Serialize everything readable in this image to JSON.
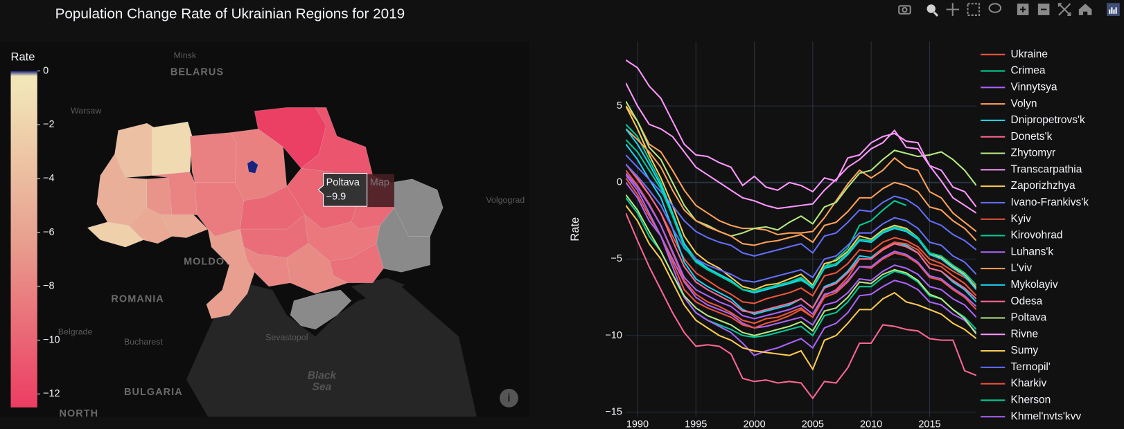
{
  "title": "Population Change Rate of Ukrainian Regions for 2019",
  "chart_data": [
    {
      "type": "choropleth",
      "values": [
        -3.5,
        -1.5,
        -5,
        -2.3,
        -5.5,
        -7,
        -5.3,
        -8,
        -8.3,
        -8.6,
        -8.2,
        0.5,
        -12.4,
        -11,
        -9.9,
        -9.6,
        null,
        null,
        -9.8,
        -9.4,
        -8.8,
        -9.3,
        -7.8,
        -7.6,
        -6.3,
        null
      ],
      "no_data_color": "#8a8a8a",
      "colorbar_title": "Rate",
      "clim": [
        -12.5,
        0
      ],
      "colorscale": [
        [
          0,
          "#ec3d63"
        ],
        [
          0.5,
          "#e8a08f"
        ],
        [
          0.96,
          "#f1e6b8"
        ],
        [
          0.985,
          "#f1e6b8"
        ],
        [
          1,
          "#1a237e"
        ]
      ],
      "cticks": [
        0,
        {
          "value": -2,
          "label": "−2"
        },
        {
          "value": -4,
          "label": "−4"
        },
        {
          "value": -6,
          "label": "−6"
        },
        {
          "value": -8,
          "label": "−8"
        },
        {
          "value": -10,
          "label": "−10"
        },
        {
          "value": -12,
          "label": "−12"
        }
      ],
      "place_labels": [
        "Minsk",
        "BELARUS",
        "Warsaw",
        "MOLDOVA",
        "ROMANIA",
        "Belgrade",
        "Bucharest",
        "Sevastopol",
        "Black",
        "Sea",
        "BULGARIA",
        "Volgograd",
        "NORTH"
      ],
      "tooltip": {
        "name": "Poltava",
        "value": -9.9,
        "label": "−9.9",
        "trace": "Map"
      }
    },
    {
      "type": "line",
      "y_label": "Rate",
      "x": [
        1989,
        1990,
        1991,
        1992,
        1993,
        1994,
        1995,
        1996,
        1997,
        1998,
        1999,
        2000,
        2001,
        2002,
        2003,
        2004,
        2005,
        2006,
        2007,
        2008,
        2009,
        2010,
        2011,
        2012,
        2013,
        2014,
        2015,
        2016,
        2017,
        2018,
        2019
      ],
      "xlim": [
        1989,
        2019
      ],
      "xticks": [
        1990,
        1995,
        2000,
        2005,
        2010,
        2015
      ],
      "ylim": [
        -15.3,
        9.2
      ],
      "yticks": [
        {
          "value": -15,
          "label": "−15"
        },
        {
          "value": -10,
          "label": "−10"
        },
        {
          "value": -5,
          "label": "−5"
        },
        0,
        5
      ],
      "grid": true,
      "series": [
        {
          "name": "Ukraine",
          "color": "#EF553B",
          "values": [
            1.2,
            0.2,
            -0.8,
            -2,
            -3.5,
            -5,
            -5.9,
            -6.4,
            -6.9,
            -7.3,
            -7.8,
            -7.9,
            -7.6,
            -7.4,
            -7.2,
            -6.9,
            -7.4,
            -6.1,
            -5.9,
            -5.3,
            -4.4,
            -4.5,
            -3.9,
            -3.6,
            -3.8,
            -4.2,
            -5,
            -5.3,
            -5.8,
            -6.2,
            -6.8
          ]
        },
        {
          "name": "Crimea",
          "color": "#00cc96",
          "values": [
            3.8,
            3,
            1.5,
            0,
            -2,
            -4,
            -5,
            -5.6,
            -6,
            -6.4,
            -7,
            -7.2,
            -7,
            -6.8,
            -6.6,
            -6.4,
            -6.8,
            -5.5,
            -5,
            -4.3,
            -2.8,
            -2.5,
            -1.8,
            -1.2,
            -1.5,
            null,
            null,
            null,
            null,
            null,
            null
          ]
        },
        {
          "name": "Vinnytsya",
          "color": "#ab63fa",
          "values": [
            0,
            -1,
            -2.5,
            -3.5,
            -5,
            -6.5,
            -7.5,
            -8,
            -8.3,
            -8.6,
            -9.2,
            -9.5,
            -9.4,
            -9.2,
            -9,
            -8.8,
            -9.3,
            -8,
            -7.8,
            -7.2,
            -6.3,
            -6.4,
            -5.8,
            -5.4,
            -5.6,
            -6,
            -6.8,
            -7,
            -7.6,
            -8,
            -8.8
          ]
        },
        {
          "name": "Volyn",
          "color": "#FFA15A",
          "values": [
            5,
            4,
            2.5,
            2,
            0.8,
            -0.5,
            -1.5,
            -2,
            -2.5,
            -2.8,
            -3,
            -3,
            -3.1,
            -3.4,
            -3.3,
            -3.3,
            -3.2,
            -2.3,
            -1.2,
            -0.1,
            0.8,
            0.3,
            0.8,
            1.6,
            1,
            0.8,
            -0.6,
            -1,
            -2,
            -2.6,
            -3.2
          ]
        },
        {
          "name": "Dnipropetrovs'k",
          "color": "#19d3f3",
          "values": [
            2.5,
            1.5,
            0.2,
            -1,
            -3,
            -5.2,
            -6.3,
            -6.8,
            -7.2,
            -7.6,
            -8.3,
            -8.6,
            -8.4,
            -8.2,
            -8,
            -7.6,
            -8.2,
            -6.8,
            -6.5,
            -5.8,
            -4.8,
            -4.9,
            -4.3,
            -3.9,
            -4.1,
            -4.6,
            -5.6,
            -5.8,
            -6.5,
            -7,
            -7.8
          ]
        },
        {
          "name": "Donets'k",
          "color": "#FF6692",
          "values": [
            -2,
            -3.8,
            -5.5,
            -7,
            -8.5,
            -9.8,
            -10.7,
            -10.6,
            -10.7,
            -11.2,
            -12.8,
            -13,
            -12.9,
            -13.1,
            -13,
            -13.1,
            -14.1,
            -13,
            -13.1,
            -12.1,
            -10.5,
            -10.5,
            -9.3,
            -9.4,
            -9.6,
            -9.7,
            -10.2,
            -10.3,
            -10.3,
            -12.3,
            -12.6
          ]
        },
        {
          "name": "Zhytomyr",
          "color": "#B6E880",
          "values": [
            5.3,
            4,
            2.3,
            1.5,
            0,
            -1.5,
            -2.5,
            -2.8,
            -3.2,
            -3.5,
            -3.3,
            -3,
            -2.9,
            -3.1,
            -2.6,
            -2.2,
            -2.7,
            -1.6,
            -1.3,
            -0.3,
            0.6,
            0.8,
            1.5,
            2.1,
            1.9,
            1.7,
            1.8,
            2,
            1.5,
            0.8,
            -0.2
          ]
        },
        {
          "name": "Transcarpathia",
          "color": "#FF97FF",
          "values": [
            8,
            7.5,
            6.3,
            5.5,
            4,
            2.5,
            1.8,
            1.7,
            1.3,
            1,
            -0.2,
            0.4,
            -0.3,
            -0.5,
            0,
            -0.2,
            -0.6,
            0.3,
            0.1,
            1.6,
            1.8,
            2.6,
            3,
            3.2,
            2.7,
            2.6,
            1.1,
            0.8,
            -0.3,
            -0.6,
            -1.6
          ]
        },
        {
          "name": "Zaporizhzhya",
          "color": "#FECB52",
          "values": [
            5,
            3.5,
            1.8,
            0.3,
            -1.5,
            -3.5,
            -4.6,
            -5.2,
            -5.6,
            -6.2,
            -6.8,
            -7,
            -6.7,
            -6.6,
            -6.3,
            -6,
            -6.7,
            -5.3,
            -5.1,
            -4.5,
            -3.5,
            -3.7,
            -3.1,
            -2.8,
            -3,
            -3.6,
            -4.6,
            -4.9,
            -5.5,
            -6,
            -6.9
          ]
        },
        {
          "name": "Ivano-Frankivs'k",
          "color": "#636efa",
          "values": [
            1.8,
            1,
            0.2,
            -0.6,
            -1.5,
            -2.5,
            -3.2,
            -3.6,
            -3.9,
            -4.1,
            -4.6,
            -4.8,
            -4.6,
            -4.4,
            -4.2,
            -4,
            -4.6,
            -3.5,
            -3.3,
            -2.6,
            -1.8,
            -1.9,
            -1.3,
            -0.9,
            -1.1,
            -1.6,
            -2.5,
            -2.8,
            -3.4,
            -3.8,
            -4.4
          ]
        },
        {
          "name": "Kyiv",
          "color": "#EF553B",
          "values": [
            0.3,
            -0.8,
            -2.2,
            -3.5,
            -5.2,
            -7,
            -7.8,
            -8.2,
            -8.5,
            -8.8,
            -9.3,
            -9.5,
            -9.2,
            -9,
            -8.7,
            -8.3,
            -8.8,
            -7.4,
            -7,
            -6.2,
            -5,
            -5,
            -4.3,
            -3.9,
            -4,
            -4.4,
            -5.3,
            -5.5,
            -6.1,
            -6.6,
            -7.4
          ]
        },
        {
          "name": "Kirovohrad",
          "color": "#00cc96",
          "values": [
            -1,
            -2,
            -3.5,
            -4.5,
            -6,
            -7.5,
            -8.5,
            -9,
            -9.3,
            -9.6,
            -10,
            -10.1,
            -10,
            -9.8,
            -9.6,
            -9.4,
            -10,
            -8.7,
            -8.5,
            -7.8,
            -6.8,
            -6.8,
            -6.2,
            -5.8,
            -6,
            -6.5,
            -7.4,
            -7.6,
            -8.3,
            -8.8,
            -9.6
          ]
        },
        {
          "name": "Luhans'k",
          "color": "#ab63fa",
          "values": [
            0.5,
            -0.5,
            -2,
            -3.5,
            -5.5,
            -7.5,
            -8.5,
            -9,
            -9.4,
            -9.8,
            -10.5,
            -11.3,
            -11,
            -10.8,
            -10.5,
            -10.2,
            -10.8,
            -9.5,
            -9.2,
            -8.5,
            -7.4,
            -7.3,
            -6.8,
            -6.4,
            -6.6,
            -7,
            -7.8,
            -8,
            -8.6,
            -9,
            -9.8
          ]
        },
        {
          "name": "L'viv",
          "color": "#FFA15A",
          "values": [
            3.5,
            2.8,
            2,
            1,
            -0.5,
            -1.8,
            -2.5,
            -2.9,
            -3.2,
            -3.5,
            -4,
            -4.1,
            -3.9,
            -3.8,
            -3.6,
            -3.4,
            -3.9,
            -2.8,
            -2.6,
            -1.9,
            -1,
            -1,
            -0.4,
            0,
            -0.2,
            -0.6,
            -1.6,
            -1.8,
            -2.5,
            -3,
            -3.8
          ]
        },
        {
          "name": "Mykolayiv",
          "color": "#19d3f3",
          "values": [
            3.5,
            2.5,
            1.2,
            -0.2,
            -2,
            -4,
            -5.1,
            -5.6,
            -6,
            -6.4,
            -7,
            -7.2,
            -7,
            -6.8,
            -6.6,
            -6.3,
            -6.9,
            -5.6,
            -5.4,
            -4.7,
            -3.8,
            -3.9,
            -3.3,
            -3,
            -3.2,
            -3.7,
            -4.7,
            -5,
            -5.6,
            -6.1,
            -7
          ]
        },
        {
          "name": "Odesa",
          "color": "#FF6692",
          "values": [
            1.2,
            0.3,
            -0.8,
            -2,
            -3.8,
            -5.5,
            -6.5,
            -7,
            -7.4,
            -7.8,
            -8.4,
            -8.5,
            -8.3,
            -8.1,
            -7.9,
            -7.6,
            -8.2,
            -6.9,
            -6.6,
            -5.9,
            -5,
            -5,
            -4.4,
            -4,
            -4.2,
            -4.6,
            -5.6,
            -5.8,
            -6.4,
            -6.9,
            -7.6
          ]
        },
        {
          "name": "Poltava",
          "color": "#B6E880",
          "values": [
            -0.8,
            -1.8,
            -3.2,
            -4.5,
            -6,
            -7.4,
            -8.2,
            -8.7,
            -9,
            -9.3,
            -9.8,
            -10,
            -9.8,
            -9.6,
            -9.4,
            -9.1,
            -9.7,
            -8.4,
            -8.2,
            -7.5,
            -6.5,
            -6.6,
            -6,
            -5.7,
            -5.9,
            -6.4,
            -7.3,
            -7.6,
            -8.3,
            -8.9,
            -9.9
          ]
        },
        {
          "name": "Rivne",
          "color": "#FF97FF",
          "values": [
            6.5,
            5,
            3.8,
            3.5,
            3,
            2,
            1,
            0.5,
            0,
            -0.5,
            -1,
            -1.2,
            -1.5,
            -1.7,
            -1.6,
            -1.5,
            -1.4,
            -0.5,
            0.2,
            1,
            1.5,
            2.2,
            2.6,
            3.4,
            2.3,
            2.2,
            1.1,
            0.1,
            -1,
            -1.5,
            -2
          ]
        },
        {
          "name": "Sumy",
          "color": "#FECB52",
          "values": [
            -1.5,
            -2.5,
            -4,
            -5,
            -6.5,
            -8,
            -9,
            -9.5,
            -10,
            -10.3,
            -10.8,
            -11,
            -11.1,
            -11.2,
            -11.3,
            -11,
            -12.2,
            -10.3,
            -10,
            -9.2,
            -8.3,
            -8.3,
            -7.6,
            -7.2,
            -7.8,
            -8,
            -8.3,
            -8.6,
            -9.2,
            -9.6,
            -10.2
          ]
        },
        {
          "name": "Ternopil'",
          "color": "#636efa",
          "values": [
            1.2,
            0.4,
            -0.5,
            -1.5,
            -3,
            -4.3,
            -5,
            -5.4,
            -5.7,
            -6,
            -6.4,
            -6.5,
            -6.3,
            -6.1,
            -5.9,
            -5.7,
            -6.2,
            -5,
            -4.8,
            -4.1,
            -3.3,
            -3.3,
            -2.7,
            -2.3,
            -2.5,
            -3,
            -3.9,
            -4.1,
            -4.8,
            -5.2,
            -6
          ]
        },
        {
          "name": "Kharkiv",
          "color": "#EF553B",
          "values": [
            0.8,
            -0.2,
            -1.4,
            -2.8,
            -4.6,
            -6.4,
            -7.3,
            -7.8,
            -8.1,
            -8.5,
            -9,
            -9.2,
            -8.9,
            -8.8,
            -8.5,
            -8.2,
            -8.8,
            -7.5,
            -7.2,
            -6.5,
            -5.5,
            -5.6,
            -5,
            -4.6,
            -4.8,
            -5.3,
            -6.2,
            -6.4,
            -7,
            -7.5,
            -8.3
          ]
        },
        {
          "name": "Kherson",
          "color": "#00cc96",
          "values": [
            2.8,
            2,
            0.8,
            -0.4,
            -2.2,
            -4.2,
            -5.2,
            -5.7,
            -6.1,
            -6.5,
            -7,
            -7.1,
            -6.9,
            -6.7,
            -6.5,
            -6.2,
            -6.8,
            -5.5,
            -5.3,
            -4.6,
            -3.7,
            -3.8,
            -3.2,
            -2.9,
            -3.1,
            -3.6,
            -4.6,
            -4.8,
            -5.4,
            -5.9,
            -6.7
          ]
        },
        {
          "name": "Khmel'nyts'kyy",
          "color": "#ab63fa",
          "values": [
            0.6,
            -0.3,
            -1.5,
            -2.8,
            -4.5,
            -6.2,
            -7,
            -7.4,
            -7.8,
            -8.1,
            -8.7,
            -8.9,
            -8.7,
            -8.5,
            -8.3,
            -8,
            -8.6,
            -7.3,
            -7.1,
            -6.4,
            -5.5,
            -5.5,
            -4.9,
            -4.5,
            -4.7,
            -5.2,
            -6.1,
            -6.3,
            -6.9,
            -7.4,
            -8.1
          ]
        }
      ]
    }
  ]
}
